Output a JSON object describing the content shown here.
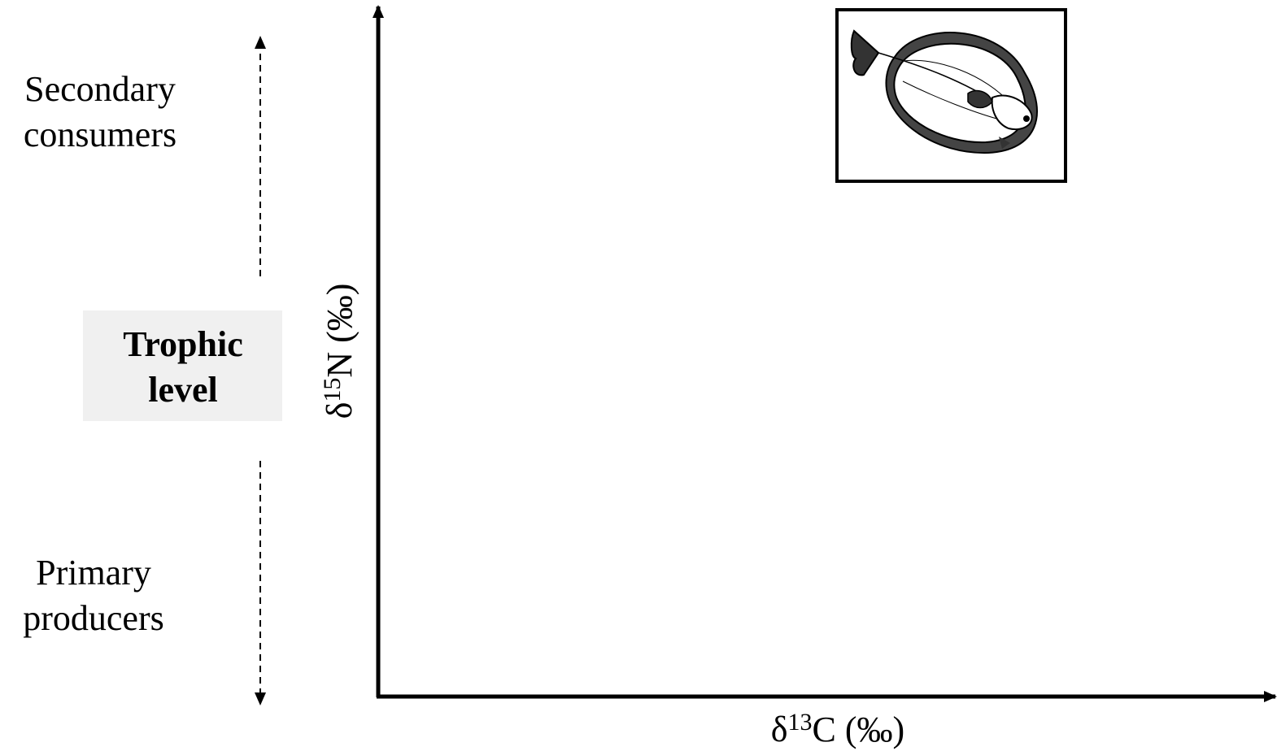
{
  "trophic_axis": {
    "top_label": [
      "Secondary",
      "consumers"
    ],
    "center_label": [
      "Trophic",
      "level"
    ],
    "bottom_label": [
      "Primary",
      "producers"
    ]
  },
  "y_axis_label": {
    "prefix": "δ",
    "superscript": "15",
    "suffix": "N (‰)"
  },
  "x_axis_label": {
    "prefix": "δ",
    "superscript": "13",
    "suffix": "C (‰)"
  }
}
